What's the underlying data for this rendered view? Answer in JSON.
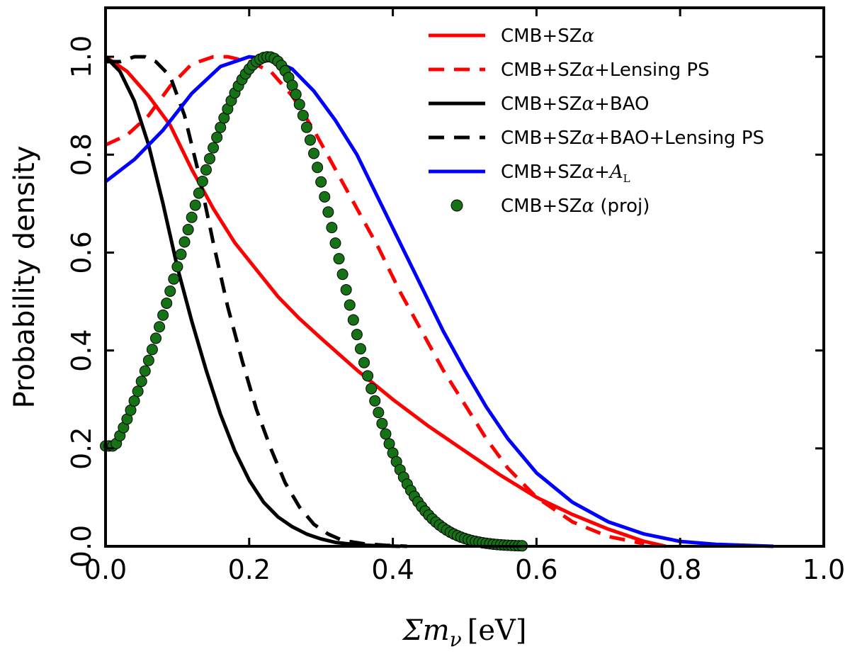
{
  "chart_data": {
    "type": "line",
    "title": "",
    "xlabel": "Σm_ν [eV]",
    "xlabel_parts": {
      "symbol": "Σm",
      "subscript": "ν",
      "unit": "[eV]"
    },
    "ylabel": "Probability density",
    "xlim": [
      0.0,
      1.0
    ],
    "ylim": [
      0.0,
      1.1
    ],
    "xticks": [
      "0.0",
      "0.2",
      "0.4",
      "0.6",
      "0.8",
      "1.0"
    ],
    "yticks": [
      "0.0",
      "0.2",
      "0.4",
      "0.6",
      "0.8",
      "1.0"
    ],
    "grid": false,
    "legend_position": "top-right",
    "series": [
      {
        "name": "CMB+SZα",
        "label_parts": [
          "CMB+SZ",
          "α",
          ""
        ],
        "color": "#ff0000",
        "style": "solid",
        "x": [
          0.0,
          0.03,
          0.06,
          0.09,
          0.12,
          0.15,
          0.18,
          0.21,
          0.24,
          0.27,
          0.3,
          0.35,
          0.4,
          0.45,
          0.5,
          0.55,
          0.6,
          0.65,
          0.7,
          0.75,
          0.78
        ],
        "y": [
          1.0,
          0.97,
          0.92,
          0.86,
          0.77,
          0.69,
          0.62,
          0.565,
          0.51,
          0.465,
          0.425,
          0.36,
          0.3,
          0.245,
          0.195,
          0.145,
          0.1,
          0.065,
          0.035,
          0.01,
          0.0
        ]
      },
      {
        "name": "CMB+SZα+Lensing PS",
        "label_parts": [
          "CMB+SZ",
          "α",
          "+Lensing PS"
        ],
        "color": "#ff0000",
        "style": "dashed",
        "x": [
          0.0,
          0.03,
          0.06,
          0.09,
          0.12,
          0.15,
          0.17,
          0.2,
          0.23,
          0.26,
          0.29,
          0.32,
          0.35,
          0.38,
          0.41,
          0.44,
          0.47,
          0.5,
          0.53,
          0.56,
          0.6,
          0.65,
          0.7,
          0.75
        ],
        "y": [
          0.82,
          0.84,
          0.88,
          0.94,
          0.985,
          1.0,
          1.0,
          0.99,
          0.97,
          0.92,
          0.85,
          0.77,
          0.69,
          0.61,
          0.52,
          0.44,
          0.36,
          0.29,
          0.22,
          0.16,
          0.1,
          0.05,
          0.02,
          0.005
        ]
      },
      {
        "name": "CMB+SZα+BAO",
        "label_parts": [
          "CMB+SZ",
          "α",
          "+BAO"
        ],
        "color": "#000000",
        "style": "solid",
        "x": [
          0.0,
          0.02,
          0.04,
          0.06,
          0.08,
          0.1,
          0.12,
          0.14,
          0.16,
          0.18,
          0.2,
          0.22,
          0.24,
          0.26,
          0.28,
          0.3,
          0.32,
          0.35,
          0.38,
          0.41
        ],
        "y": [
          1.0,
          0.97,
          0.91,
          0.82,
          0.7,
          0.57,
          0.46,
          0.36,
          0.27,
          0.195,
          0.135,
          0.09,
          0.06,
          0.04,
          0.025,
          0.015,
          0.008,
          0.003,
          0.001,
          0.0
        ]
      },
      {
        "name": "CMB+SZα+BAO+Lensing PS",
        "label_parts": [
          "CMB+SZ",
          "α",
          "+BAO+Lensing PS"
        ],
        "color": "#000000",
        "style": "dashed",
        "x": [
          0.0,
          0.02,
          0.04,
          0.055,
          0.07,
          0.09,
          0.11,
          0.13,
          0.15,
          0.17,
          0.19,
          0.21,
          0.23,
          0.25,
          0.27,
          0.29,
          0.31,
          0.33,
          0.36,
          0.39,
          0.42
        ],
        "y": [
          0.99,
          0.99,
          1.0,
          1.0,
          0.99,
          0.96,
          0.88,
          0.76,
          0.62,
          0.49,
          0.38,
          0.28,
          0.2,
          0.13,
          0.08,
          0.045,
          0.025,
          0.012,
          0.005,
          0.002,
          0.0
        ]
      },
      {
        "name": "CMB+SZα+A_L",
        "label_parts": [
          "CMB+SZ",
          "α",
          "+A",
          "L"
        ],
        "color": "#0000ff",
        "style": "solid",
        "x": [
          0.0,
          0.04,
          0.08,
          0.12,
          0.16,
          0.2,
          0.23,
          0.26,
          0.29,
          0.32,
          0.35,
          0.38,
          0.41,
          0.44,
          0.47,
          0.5,
          0.53,
          0.56,
          0.6,
          0.65,
          0.7,
          0.75,
          0.8,
          0.85,
          0.93
        ],
        "y": [
          0.745,
          0.79,
          0.85,
          0.925,
          0.98,
          1.0,
          0.995,
          0.975,
          0.93,
          0.87,
          0.8,
          0.71,
          0.62,
          0.53,
          0.44,
          0.36,
          0.285,
          0.22,
          0.15,
          0.09,
          0.05,
          0.025,
          0.01,
          0.004,
          0.0
        ]
      },
      {
        "name": "CMB+SZα (proj)",
        "label_parts": [
          "CMB+SZ",
          "α",
          " (proj)"
        ],
        "color": "#157315",
        "style": "markers",
        "x_start": 0.0,
        "x_end": 0.58,
        "x_step": 0.005,
        "mu": 0.227,
        "sigma_left": 0.12,
        "sigma_right": 0.095,
        "floor_value": 0.205
      }
    ]
  }
}
